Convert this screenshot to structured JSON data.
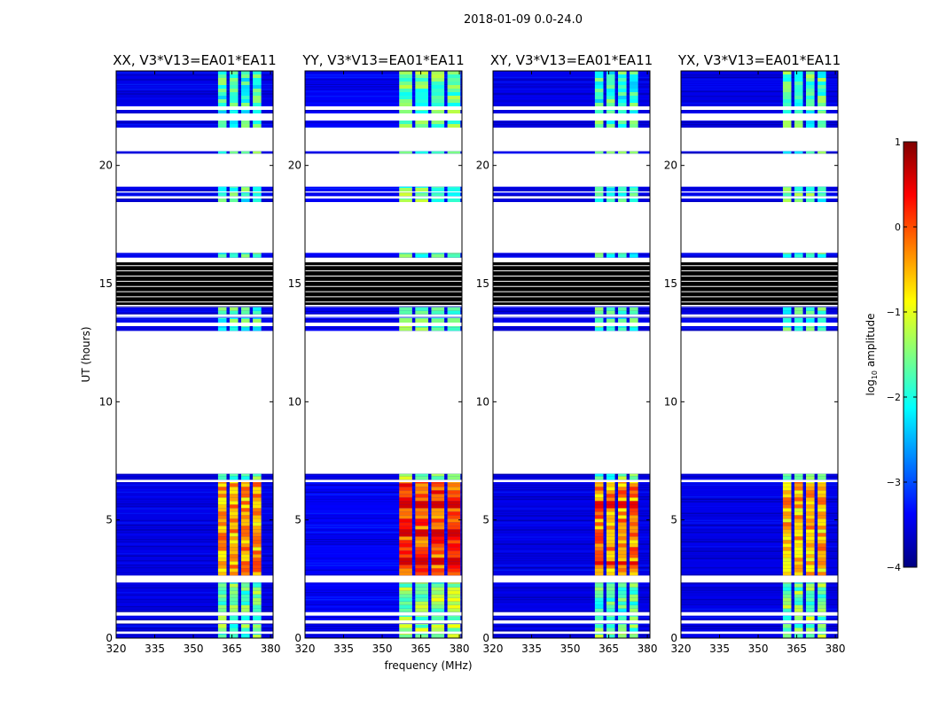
{
  "figure": {
    "suptitle": "2018-01-09 0.0-24.0",
    "ylabel": "UT (hours)",
    "xlabel": "frequency (MHz)"
  },
  "chart_data": {
    "type": "heatmap",
    "title": "2018-01-09 0.0-24.0",
    "xlabel": "frequency (MHz)",
    "ylabel": "UT (hours)",
    "xlim": [
      320,
      381
    ],
    "ylim": [
      0,
      24
    ],
    "xticks": [
      320,
      335,
      350,
      365,
      380
    ],
    "yticks": [
      0,
      5,
      10,
      15,
      20
    ],
    "panels": [
      {
        "title": "XX, V3*V13=EA01*EA11",
        "active_band_mhz": [
          359,
          377
        ],
        "peak_log_amp_day": -1.3,
        "peak_log_amp_night": 0.1,
        "bg_log_amp": -3.5,
        "hot_rows": []
      },
      {
        "title": "YY, V3*V13=EA01*EA11",
        "active_band_mhz": [
          356,
          381
        ],
        "peak_log_amp_day": -1.1,
        "peak_log_amp_night": 0.5,
        "bg_log_amp": -3.4,
        "hot_rows": [
          [
            5.5,
            5.8
          ],
          [
            3.0,
            3.3
          ],
          [
            4.3,
            4.5
          ]
        ]
      },
      {
        "title": "XY, V3*V13=EA01*EA11",
        "active_band_mhz": [
          359,
          377
        ],
        "peak_log_amp_day": -1.3,
        "peak_log_amp_night": 0.2,
        "bg_log_amp": -3.5,
        "hot_rows": [
          [
            5.5,
            5.8
          ],
          [
            3.0,
            3.2
          ]
        ]
      },
      {
        "title": "YX, V3*V13=EA01*EA11",
        "active_band_mhz": [
          359,
          377
        ],
        "peak_log_amp_day": -1.2,
        "peak_log_amp_night": 0.0,
        "bg_log_amp": -3.5,
        "hot_rows": []
      }
    ],
    "data_spans_hours": [
      [
        0,
        0.18
      ],
      [
        0.28,
        0.6
      ],
      [
        0.75,
        0.95
      ],
      [
        1.1,
        2.35
      ],
      [
        2.65,
        6.6
      ],
      [
        6.7,
        6.95
      ],
      [
        13.0,
        13.2
      ],
      [
        13.35,
        13.55
      ],
      [
        13.7,
        14.0
      ],
      [
        16.1,
        16.3
      ],
      [
        18.45,
        18.6
      ],
      [
        18.7,
        18.85
      ],
      [
        18.9,
        19.1
      ],
      [
        20.5,
        20.6
      ],
      [
        21.6,
        21.9
      ],
      [
        22.2,
        22.35
      ],
      [
        22.5,
        24.0
      ]
    ],
    "masked_black_hours": [
      [
        14.1,
        15.9
      ]
    ],
    "colorbar": {
      "label": "log10 amplitude",
      "range": [
        -4,
        1
      ],
      "ticks": [
        "1",
        "0",
        "−1",
        "−2",
        "−3",
        "−4"
      ],
      "colormap": [
        "#000080",
        "#0000ff",
        "#0080ff",
        "#00ffff",
        "#80ff80",
        "#ffff00",
        "#ff8000",
        "#ff0000",
        "#800000"
      ]
    }
  }
}
